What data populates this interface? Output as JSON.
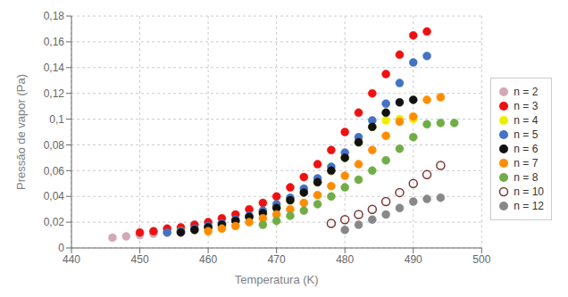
{
  "chart_data": {
    "type": "scatter",
    "title": "",
    "xlabel": "Temperatura (K)",
    "ylabel": "Pressão de vapor (Pa)",
    "xlim": [
      440,
      500
    ],
    "ylim": [
      0,
      0.18
    ],
    "xticks": [
      440,
      450,
      460,
      470,
      480,
      490,
      500
    ],
    "yticks": [
      0,
      {
        "value": 0.02,
        "label": "0,02"
      },
      {
        "value": 0.04,
        "label": "0,04"
      },
      {
        "value": 0.06,
        "label": "0,06"
      },
      {
        "value": 0.08,
        "label": "0,08"
      },
      {
        "value": 0.1,
        "label": "0,1"
      },
      {
        "value": 0.12,
        "label": "0,12"
      },
      {
        "value": 0.14,
        "label": "0,14"
      },
      {
        "value": 0.16,
        "label": "0,16"
      },
      {
        "value": 0.18,
        "label": "0,18"
      }
    ],
    "grid": true,
    "legend": "right",
    "series": [
      {
        "name": "n = 2",
        "color": "#d4a8b8",
        "marker": "circle",
        "x": [
          446,
          448,
          450,
          452,
          454
        ],
        "values": [
          0.008,
          0.009,
          0.01,
          0.011,
          0.012
        ]
      },
      {
        "name": "n = 3",
        "color": "#ee1111",
        "marker": "circle",
        "x": [
          450,
          452,
          454,
          456,
          458,
          460,
          462,
          464,
          466,
          468,
          470,
          472,
          474,
          476,
          478,
          480,
          482,
          484,
          486,
          488,
          490,
          492
        ],
        "values": [
          0.012,
          0.013,
          0.015,
          0.016,
          0.018,
          0.02,
          0.023,
          0.026,
          0.03,
          0.035,
          0.04,
          0.047,
          0.055,
          0.065,
          0.076,
          0.09,
          0.105,
          0.12,
          0.135,
          0.15,
          0.165,
          0.168
        ]
      },
      {
        "name": "n = 4",
        "color": "#eeee00",
        "marker": "circle",
        "x": [
          456,
          458,
          460,
          462,
          464,
          466,
          468,
          470,
          472,
          474,
          476,
          478,
          480,
          482,
          484,
          486,
          488,
          490
        ],
        "values": [
          0.013,
          0.014,
          0.016,
          0.018,
          0.021,
          0.024,
          0.028,
          0.032,
          0.037,
          0.044,
          0.051,
          0.06,
          0.07,
          0.082,
          0.094,
          0.099,
          0.1,
          0.1
        ]
      },
      {
        "name": "n = 5",
        "color": "#4472c4",
        "marker": "circle",
        "x": [
          454,
          456,
          458,
          460,
          462,
          464,
          466,
          468,
          470,
          472,
          474,
          476,
          478,
          480,
          482,
          484,
          486,
          488,
          490,
          492
        ],
        "values": [
          0.012,
          0.013,
          0.015,
          0.017,
          0.019,
          0.022,
          0.025,
          0.029,
          0.034,
          0.039,
          0.046,
          0.054,
          0.063,
          0.074,
          0.086,
          0.099,
          0.112,
          0.128,
          0.144,
          0.149
        ]
      },
      {
        "name": "n = 6",
        "color": "#111111",
        "marker": "circle",
        "x": [
          456,
          458,
          460,
          462,
          464,
          466,
          468,
          470,
          472,
          474,
          476,
          478,
          480,
          482,
          484,
          486,
          488,
          490
        ],
        "values": [
          0.012,
          0.014,
          0.016,
          0.018,
          0.021,
          0.024,
          0.027,
          0.031,
          0.037,
          0.043,
          0.051,
          0.06,
          0.07,
          0.082,
          0.094,
          0.105,
          0.113,
          0.115
        ]
      },
      {
        "name": "n = 7",
        "color": "#ff8c00",
        "marker": "circle",
        "x": [
          460,
          462,
          464,
          466,
          468,
          470,
          472,
          474,
          476,
          478,
          480,
          482,
          484,
          486,
          488,
          490,
          492,
          494
        ],
        "values": [
          0.013,
          0.015,
          0.017,
          0.02,
          0.023,
          0.026,
          0.03,
          0.035,
          0.041,
          0.048,
          0.056,
          0.065,
          0.076,
          0.087,
          0.098,
          0.102,
          0.115,
          0.117
        ]
      },
      {
        "name": "n = 8",
        "color": "#70ad47",
        "marker": "circle",
        "x": [
          468,
          470,
          472,
          474,
          476,
          478,
          480,
          482,
          484,
          486,
          488,
          490,
          492,
          494,
          496
        ],
        "values": [
          0.018,
          0.021,
          0.025,
          0.029,
          0.034,
          0.04,
          0.047,
          0.053,
          0.06,
          0.068,
          0.077,
          0.086,
          0.096,
          0.097,
          0.097
        ]
      },
      {
        "name": "n = 10",
        "color": "#7b3535",
        "marker": "open_circle",
        "x": [
          478,
          480,
          482,
          484,
          486,
          488,
          490,
          492,
          494
        ],
        "values": [
          0.019,
          0.022,
          0.026,
          0.03,
          0.036,
          0.043,
          0.05,
          0.057,
          0.064
        ]
      },
      {
        "name": "n = 12",
        "color": "#888888",
        "marker": "circle",
        "x": [
          480,
          482,
          484,
          486,
          488,
          490,
          492,
          494
        ],
        "values": [
          0.014,
          0.018,
          0.022,
          0.026,
          0.031,
          0.036,
          0.038,
          0.039
        ]
      }
    ]
  }
}
